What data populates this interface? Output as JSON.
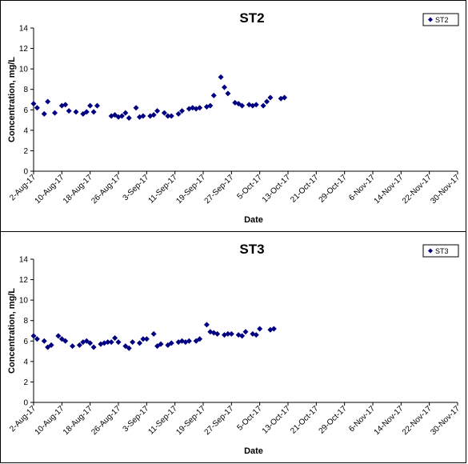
{
  "chart_data": [
    {
      "type": "scatter",
      "title": "ST2",
      "xlabel": "Date",
      "ylabel": "Concentration, mg/L",
      "ylim": [
        0,
        14
      ],
      "yticks": [
        "0",
        "2",
        "4",
        "6",
        "8",
        "10",
        "12",
        "14"
      ],
      "xlim": [
        "2017-08-02",
        "2017-11-30"
      ],
      "xtick_labels": [
        "2-Aug-17",
        "10-Aug-17",
        "18-Aug-17",
        "26-Aug-17",
        "3-Sep-17",
        "11-Sep-17",
        "19-Sep-17",
        "27-Sep-17",
        "5-Oct-17",
        "13-Oct-17",
        "21-Oct-17",
        "29-Oct-17",
        "6-Nov-17",
        "14-Nov-17",
        "22-Nov-17",
        "30-Nov-17"
      ],
      "grid": false,
      "legend": "top-right",
      "series": [
        {
          "name": "ST2",
          "color": "#000080",
          "marker": "diamond",
          "points": [
            [
              "2017-08-02",
              6.6
            ],
            [
              "2017-08-03",
              6.2
            ],
            [
              "2017-08-05",
              5.6
            ],
            [
              "2017-08-06",
              6.8
            ],
            [
              "2017-08-08",
              5.7
            ],
            [
              "2017-08-10",
              6.4
            ],
            [
              "2017-08-11",
              6.5
            ],
            [
              "2017-08-12",
              5.9
            ],
            [
              "2017-08-14",
              5.8
            ],
            [
              "2017-08-16",
              5.6
            ],
            [
              "2017-08-17",
              5.8
            ],
            [
              "2017-08-18",
              6.4
            ],
            [
              "2017-08-19",
              5.8
            ],
            [
              "2017-08-20",
              6.4
            ],
            [
              "2017-08-24",
              5.4
            ],
            [
              "2017-08-25",
              5.5
            ],
            [
              "2017-08-26",
              5.3
            ],
            [
              "2017-08-27",
              5.4
            ],
            [
              "2017-08-28",
              5.7
            ],
            [
              "2017-08-29",
              5.2
            ],
            [
              "2017-08-31",
              6.2
            ],
            [
              "2017-09-01",
              5.3
            ],
            [
              "2017-09-02",
              5.4
            ],
            [
              "2017-09-04",
              5.4
            ],
            [
              "2017-09-05",
              5.5
            ],
            [
              "2017-09-06",
              5.9
            ],
            [
              "2017-09-08",
              5.7
            ],
            [
              "2017-09-09",
              5.4
            ],
            [
              "2017-09-10",
              5.4
            ],
            [
              "2017-09-12",
              5.6
            ],
            [
              "2017-09-13",
              5.9
            ],
            [
              "2017-09-15",
              6.1
            ],
            [
              "2017-09-16",
              6.2
            ],
            [
              "2017-09-17",
              6.1
            ],
            [
              "2017-09-18",
              6.2
            ],
            [
              "2017-09-20",
              6.3
            ],
            [
              "2017-09-21",
              6.4
            ],
            [
              "2017-09-22",
              7.4
            ],
            [
              "2017-09-24",
              9.2
            ],
            [
              "2017-09-25",
              8.2
            ],
            [
              "2017-09-26",
              7.6
            ],
            [
              "2017-09-28",
              6.7
            ],
            [
              "2017-09-29",
              6.6
            ],
            [
              "2017-09-30",
              6.4
            ],
            [
              "2017-10-02",
              6.5
            ],
            [
              "2017-10-03",
              6.4
            ],
            [
              "2017-10-04",
              6.5
            ],
            [
              "2017-10-06",
              6.4
            ],
            [
              "2017-10-07",
              6.8
            ],
            [
              "2017-10-08",
              7.2
            ],
            [
              "2017-10-11",
              7.1
            ],
            [
              "2017-10-12",
              7.2
            ]
          ]
        }
      ]
    },
    {
      "type": "scatter",
      "title": "ST3",
      "xlabel": "Date",
      "ylabel": "Concentration, mg/L",
      "ylim": [
        0,
        14
      ],
      "yticks": [
        "0",
        "2",
        "4",
        "6",
        "8",
        "10",
        "12",
        "14"
      ],
      "xlim": [
        "2017-08-02",
        "2017-11-30"
      ],
      "xtick_labels": [
        "2-Aug-17",
        "10-Aug-17",
        "18-Aug-17",
        "26-Aug-17",
        "3-Sep-17",
        "11-Sep-17",
        "19-Sep-17",
        "27-Sep-17",
        "5-Oct-17",
        "13-Oct-17",
        "21-Oct-17",
        "29-Oct-17",
        "6-Nov-17",
        "14-Nov-17",
        "22-Nov-17",
        "30-Nov-17"
      ],
      "grid": false,
      "legend": "top-right",
      "series": [
        {
          "name": "ST3",
          "color": "#000080",
          "marker": "diamond",
          "points": [
            [
              "2017-08-02",
              6.5
            ],
            [
              "2017-08-03",
              6.2
            ],
            [
              "2017-08-05",
              6.0
            ],
            [
              "2017-08-06",
              5.4
            ],
            [
              "2017-08-07",
              5.6
            ],
            [
              "2017-08-09",
              6.5
            ],
            [
              "2017-08-10",
              6.2
            ],
            [
              "2017-08-11",
              6.0
            ],
            [
              "2017-08-13",
              5.5
            ],
            [
              "2017-08-15",
              5.6
            ],
            [
              "2017-08-16",
              5.9
            ],
            [
              "2017-08-17",
              6.0
            ],
            [
              "2017-08-18",
              5.8
            ],
            [
              "2017-08-19",
              5.4
            ],
            [
              "2017-08-21",
              5.7
            ],
            [
              "2017-08-22",
              5.8
            ],
            [
              "2017-08-23",
              5.9
            ],
            [
              "2017-08-24",
              5.9
            ],
            [
              "2017-08-25",
              6.3
            ],
            [
              "2017-08-26",
              5.9
            ],
            [
              "2017-08-28",
              5.5
            ],
            [
              "2017-08-29",
              5.3
            ],
            [
              "2017-08-30",
              5.9
            ],
            [
              "2017-09-01",
              5.8
            ],
            [
              "2017-09-02",
              6.2
            ],
            [
              "2017-09-03",
              6.2
            ],
            [
              "2017-09-05",
              6.7
            ],
            [
              "2017-09-06",
              5.5
            ],
            [
              "2017-09-07",
              5.7
            ],
            [
              "2017-09-09",
              5.6
            ],
            [
              "2017-09-10",
              5.8
            ],
            [
              "2017-09-12",
              5.9
            ],
            [
              "2017-09-13",
              6.0
            ],
            [
              "2017-09-14",
              5.9
            ],
            [
              "2017-09-15",
              6.0
            ],
            [
              "2017-09-17",
              6.0
            ],
            [
              "2017-09-18",
              6.2
            ],
            [
              "2017-09-20",
              7.6
            ],
            [
              "2017-09-21",
              6.9
            ],
            [
              "2017-09-22",
              6.8
            ],
            [
              "2017-09-23",
              6.7
            ],
            [
              "2017-09-25",
              6.6
            ],
            [
              "2017-09-26",
              6.7
            ],
            [
              "2017-09-27",
              6.7
            ],
            [
              "2017-09-29",
              6.6
            ],
            [
              "2017-09-30",
              6.5
            ],
            [
              "2017-10-01",
              6.9
            ],
            [
              "2017-10-03",
              6.7
            ],
            [
              "2017-10-04",
              6.6
            ],
            [
              "2017-10-05",
              7.2
            ],
            [
              "2017-10-08",
              7.1
            ],
            [
              "2017-10-09",
              7.2
            ]
          ]
        }
      ]
    }
  ]
}
